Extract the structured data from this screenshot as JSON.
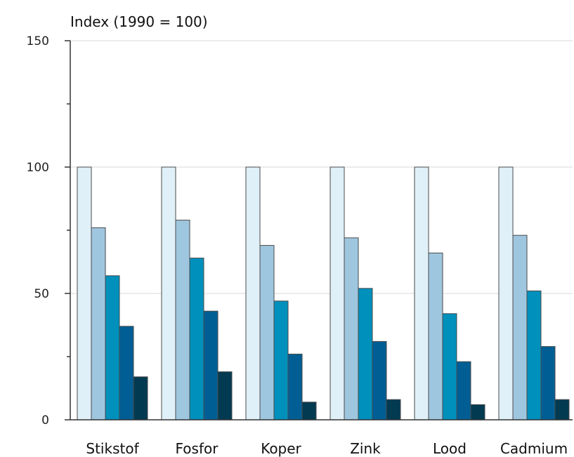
{
  "chart_data": {
    "type": "bar",
    "ylabel": "Index (1990 = 100)",
    "ylim": [
      0,
      150
    ],
    "yticks": [
      0,
      50,
      100,
      150
    ],
    "grid": true,
    "categories": [
      "Stikstof",
      "Fosfor",
      "Koper",
      "Zink",
      "Lood",
      "Cadmium"
    ],
    "series": [
      {
        "color": "#e0f0f8",
        "values": [
          100,
          100,
          100,
          100,
          100,
          100
        ]
      },
      {
        "color": "#9fc6df",
        "values": [
          76,
          79,
          69,
          72,
          66,
          73
        ]
      },
      {
        "color": "#0090bc",
        "values": [
          57,
          64,
          47,
          52,
          42,
          51
        ]
      },
      {
        "color": "#005e94",
        "values": [
          37,
          43,
          26,
          31,
          23,
          29
        ]
      },
      {
        "color": "#023a52",
        "values": [
          17,
          19,
          7,
          8,
          6,
          8
        ]
      }
    ]
  }
}
